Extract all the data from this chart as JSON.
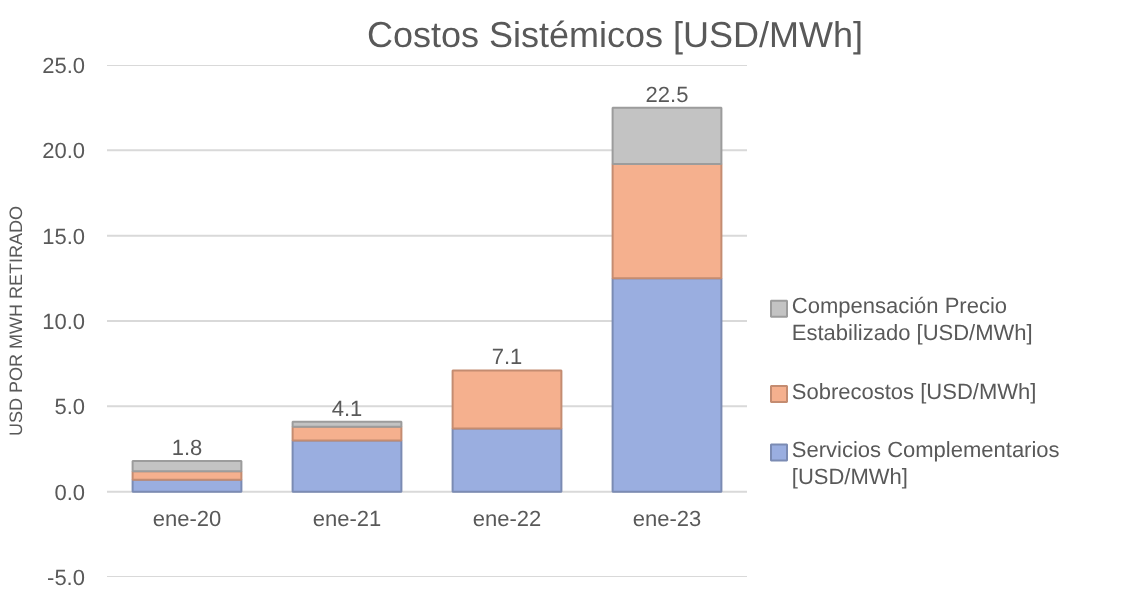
{
  "chart_data": {
    "type": "bar",
    "title": "Costos Sistémicos [USD/MWh]",
    "ylabel": "USD POR MWH RETIRADO",
    "categories": [
      "ene-20",
      "ene-21",
      "ene-22",
      "ene-23"
    ],
    "stacked": true,
    "series": [
      {
        "name": "Servicios Complementarios [USD/MWh]",
        "color": "#9aaee0",
        "values": [
          0.7,
          3.0,
          3.7,
          12.5
        ]
      },
      {
        "name": "Sobrecostos [USD/MWh]",
        "color": "#f5b08e",
        "values": [
          0.5,
          0.8,
          3.4,
          6.7
        ]
      },
      {
        "name": "Compensación Precio Estabilizado [USD/MWh]",
        "color": "#c3c3c3",
        "values": [
          0.6,
          0.3,
          0.0,
          3.3
        ]
      }
    ],
    "totals": [
      "1.8",
      "4.1",
      "7.1",
      "22.5"
    ],
    "ylim": [
      -5,
      25
    ],
    "yticks": [
      {
        "value": -5,
        "label": "-5.0"
      },
      {
        "value": 0,
        "label": "0.0"
      },
      {
        "value": 5,
        "label": "5.0"
      },
      {
        "value": 10,
        "label": "10.0"
      },
      {
        "value": 15,
        "label": "15.0"
      },
      {
        "value": 20,
        "label": "20.0"
      },
      {
        "value": 25,
        "label": "25.0"
      }
    ],
    "grid": "y",
    "legend": "right"
  }
}
